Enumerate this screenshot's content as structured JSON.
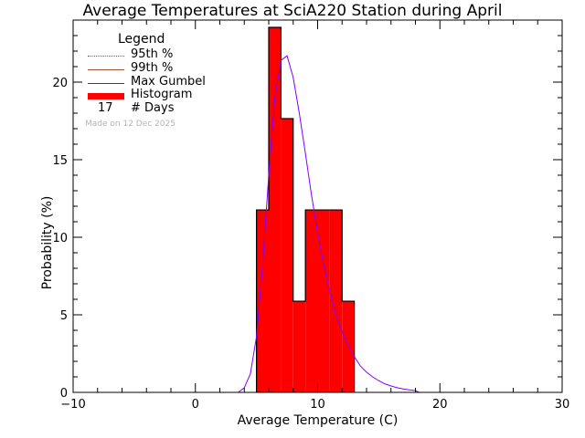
{
  "chart_data": {
    "type": "bar",
    "title": "Average Temperatures at SciA220 Station during April",
    "xlabel": "Average Temperature (C)",
    "ylabel": "Probability (%)",
    "xlim": [
      -10,
      30
    ],
    "ylim": [
      0,
      24
    ],
    "x_ticks": [
      -10,
      0,
      10,
      20,
      30
    ],
    "y_ticks": [
      0,
      5,
      10,
      15,
      20
    ],
    "grid": false,
    "legend_placement": "top-left",
    "histogram": {
      "name": "Histogram",
      "bin_width": 1,
      "bins": [
        {
          "x0": 5,
          "x1": 6,
          "value": 11.76
        },
        {
          "x0": 6,
          "x1": 7,
          "value": 23.53
        },
        {
          "x0": 7,
          "x1": 8,
          "value": 17.65
        },
        {
          "x0": 8,
          "x1": 9,
          "value": 5.88
        },
        {
          "x0": 9,
          "x1": 10,
          "value": 11.76
        },
        {
          "x0": 10,
          "x1": 11,
          "value": 11.76
        },
        {
          "x0": 11,
          "x1": 12,
          "value": 11.76
        },
        {
          "x0": 12,
          "x1": 13,
          "value": 5.88
        }
      ],
      "color": "#ff0000"
    },
    "gumbel": {
      "name": "Max Gumbel",
      "color": "#8000ff",
      "x": [
        3.5,
        4.0,
        4.5,
        5.0,
        5.5,
        6.0,
        6.5,
        7.0,
        7.5,
        8.0,
        8.5,
        9.0,
        9.5,
        10.0,
        10.5,
        11.0,
        11.5,
        12.0,
        12.5,
        13.0,
        13.5,
        14.0,
        14.5,
        15.0,
        15.5,
        16.0,
        16.5,
        17.0,
        17.5,
        18.0,
        18.3
      ],
      "y": [
        0.0,
        0.3,
        1.2,
        3.6,
        8.2,
        14.0,
        19.0,
        21.4,
        21.7,
        20.3,
        18.0,
        15.4,
        12.7,
        10.3,
        8.2,
        6.5,
        5.0,
        3.9,
        3.0,
        2.3,
        1.7,
        1.3,
        1.0,
        0.75,
        0.55,
        0.41,
        0.3,
        0.22,
        0.16,
        0.11,
        0.0
      ]
    }
  },
  "legend": {
    "title": "Legend",
    "items": [
      {
        "label": "95th %",
        "color": "#0080ff",
        "style": "dotted"
      },
      {
        "label": "99th %",
        "color": "#a0522d",
        "style": "solid"
      },
      {
        "label": "Max Gumbel",
        "color": "#8000ff",
        "style": "solid"
      },
      {
        "label": "Histogram",
        "color": "#ff0000",
        "style": "thick"
      }
    ],
    "days_count": "17",
    "days_label": "# Days",
    "made_on": "Made on 12 Dec 2025"
  }
}
